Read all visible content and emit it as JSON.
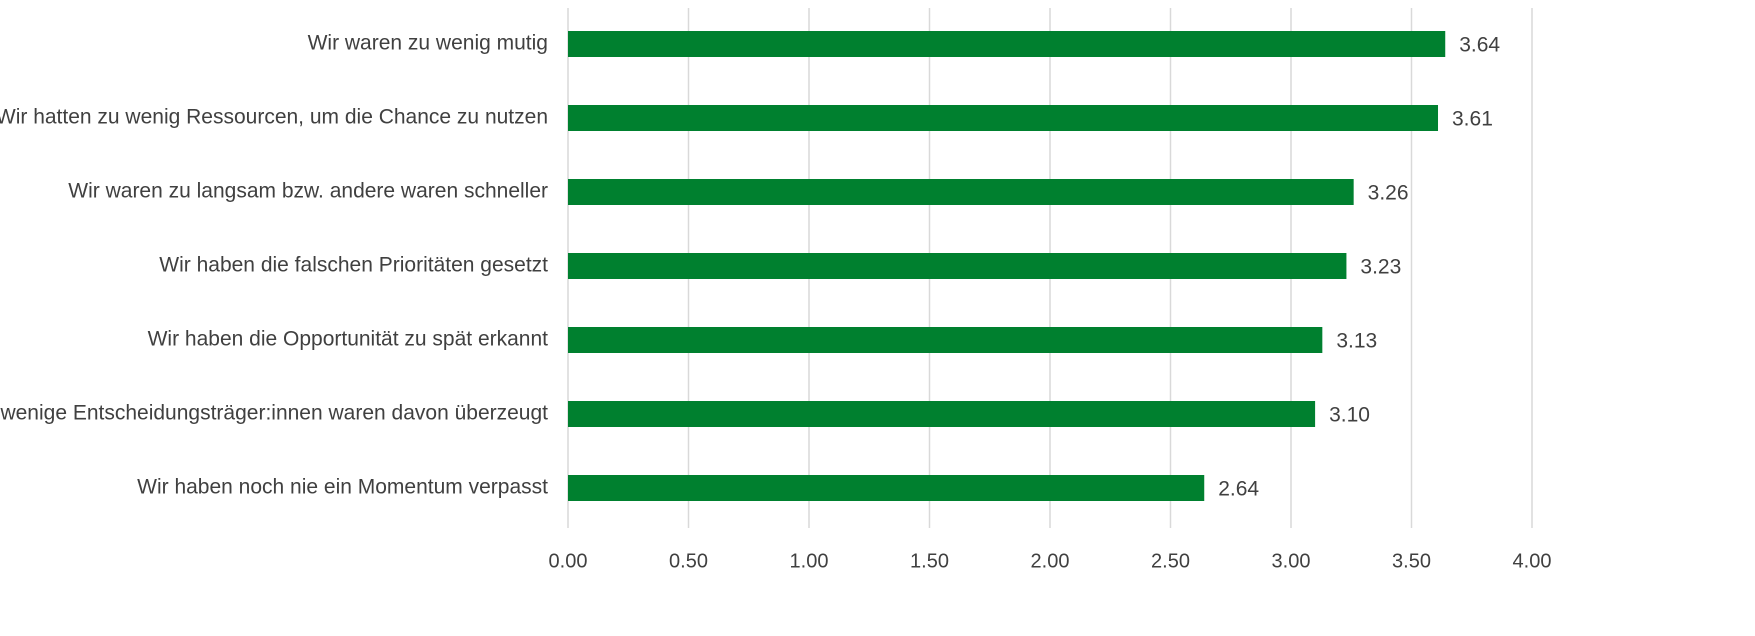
{
  "chart_data": {
    "type": "bar",
    "orientation": "horizontal",
    "categories": [
      "Wir waren zu wenig mutig",
      "Wir hatten zu wenig Ressourcen, um die Chance zu nutzen",
      "Wir waren zu langsam bzw. andere waren schneller",
      "Wir haben die falschen Prioritäten gesetzt",
      "Wir haben die Opportunität zu spät erkannt",
      "Zu wenige Entscheidungsträger:innen waren davon überzeugt",
      "Wir haben noch nie ein Momentum verpasst"
    ],
    "values": [
      3.64,
      3.61,
      3.26,
      3.23,
      3.13,
      3.1,
      2.64
    ],
    "value_labels": [
      "3.64",
      "3.61",
      "3.26",
      "3.23",
      "3.13",
      "3.10",
      "2.64"
    ],
    "xlim": [
      0,
      4
    ],
    "x_ticks": [
      0,
      0.5,
      1,
      1.5,
      2,
      2.5,
      3,
      3.5,
      4
    ],
    "x_tick_labels": [
      "0.00",
      "0.50",
      "1.00",
      "1.50",
      "2.00",
      "2.50",
      "3.00",
      "3.50",
      "4.00"
    ],
    "grid": "vertical",
    "legend": "none",
    "bar_color": "#00802f",
    "title": "",
    "xlabel": "",
    "ylabel": ""
  }
}
